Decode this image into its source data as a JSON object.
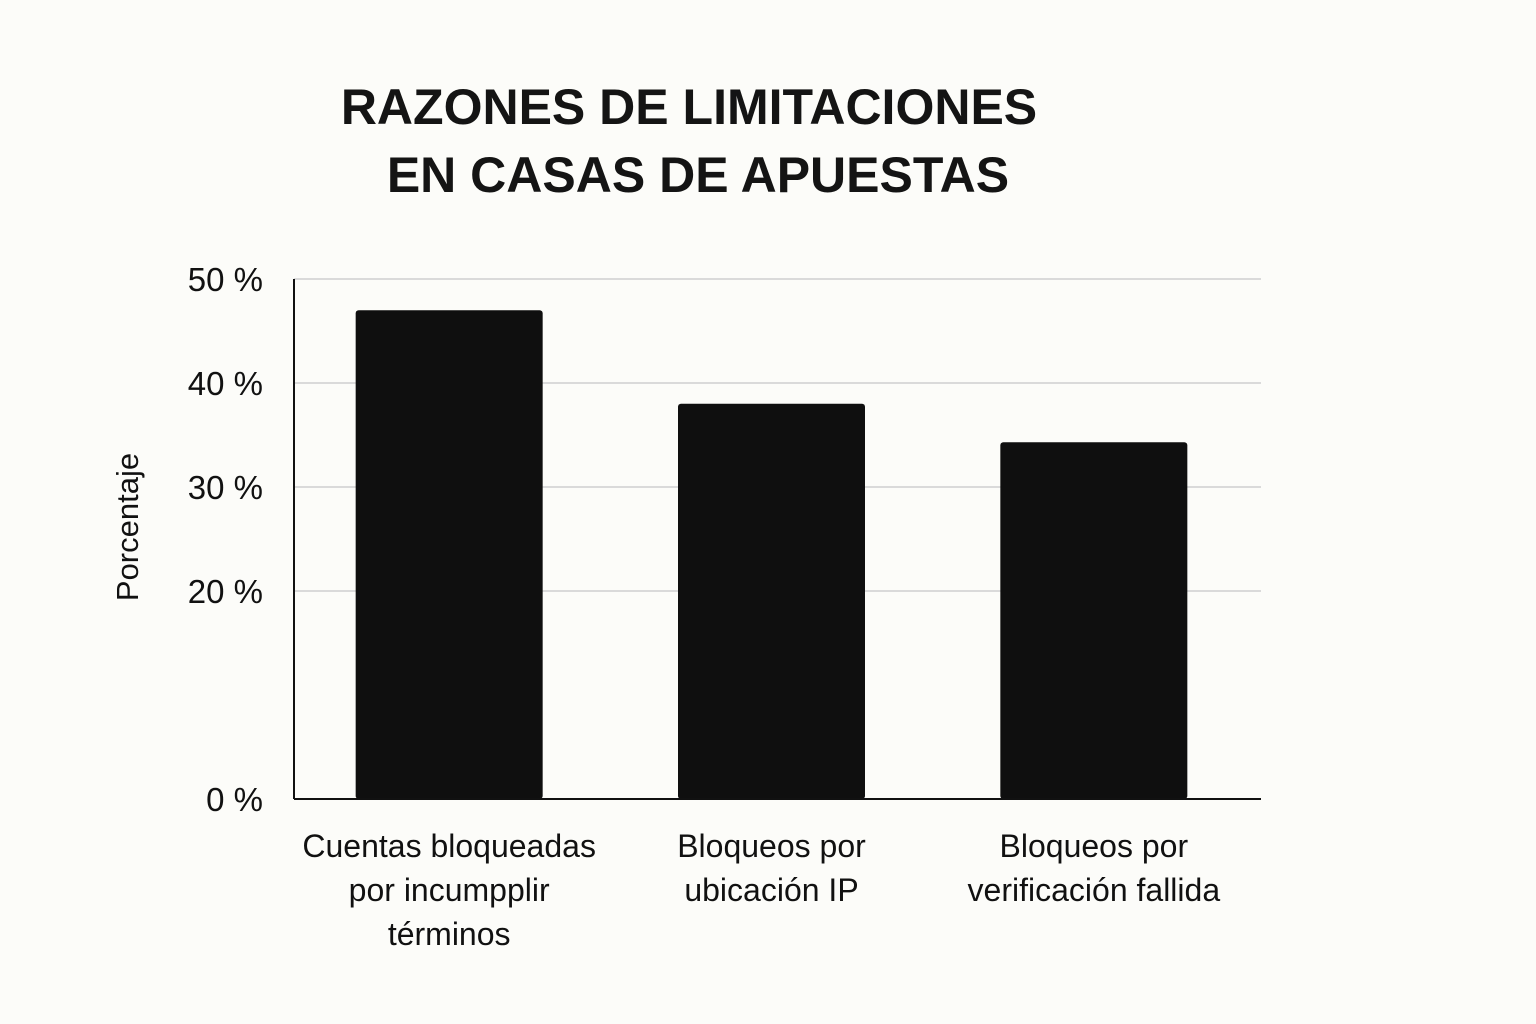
{
  "chart_data": {
    "type": "bar",
    "title_lines": [
      "RAZONES DE LIMITACIONES",
      "EN CASAS DE APUESTAS"
    ],
    "ylabel": "Porcentaje",
    "xlabel": "",
    "ylim": [
      0,
      50
    ],
    "yticks": [
      0,
      20,
      30,
      40,
      50
    ],
    "ytick_labels": [
      "0 %",
      "20 %",
      "30 %",
      "40 %",
      "50 %"
    ],
    "grid": true,
    "legend": "none",
    "categories": [
      [
        "Cuentas bloqueadas",
        "por incumpplir",
        "términos"
      ],
      [
        "Bloqueos por",
        "ubicación IP"
      ],
      [
        "Bloqueos por",
        "verificación fallida"
      ]
    ],
    "values": [
      47,
      38,
      34.3
    ],
    "bar_color": "#0f0f0f",
    "grid_color": "#cfcfcf",
    "axis_color": "#111111"
  }
}
